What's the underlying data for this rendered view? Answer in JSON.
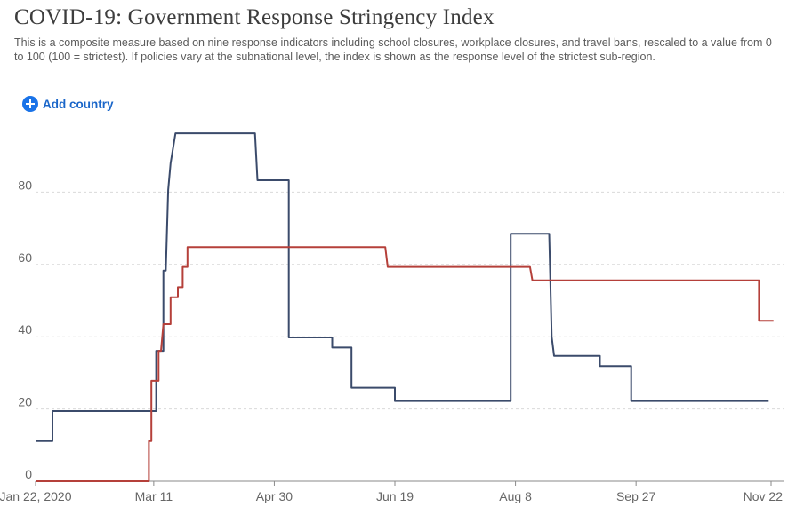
{
  "header": {
    "title": "COVID-19: Government Response Stringency Index",
    "subtitle": "This is a composite measure based on nine response indicators including school closures, workplace closures, and travel bans, rescaled to a value from 0 to 100 (100 = strictest). If policies vary at the subnational level, the index is shown as the response level of the strictest sub-region."
  },
  "controls": {
    "add_country_label": "Add country",
    "add_country_icon": "plus-circle-icon",
    "accent": "#1a73e8"
  },
  "chart_data": {
    "type": "line",
    "x_axis": {
      "type": "date",
      "range": [
        "2020-01-22",
        "2020-11-22"
      ],
      "tick_labels": [
        "Jan 22, 2020",
        "Mar 11",
        "Apr 30",
        "Jun 19",
        "Aug 8",
        "Sep 27",
        "Nov 22"
      ],
      "tick_dates": [
        "2020-01-22",
        "2020-03-11",
        "2020-04-30",
        "2020-06-19",
        "2020-08-08",
        "2020-09-27",
        "2020-11-22"
      ]
    },
    "y_axis": {
      "range": [
        0,
        100
      ],
      "ticks": [
        0,
        20,
        40,
        60,
        80
      ],
      "grid": true
    },
    "legend": "none",
    "series": [
      {
        "color": "#3b4b6b",
        "points": [
          [
            "2020-01-22",
            11.1
          ],
          [
            "2020-01-29",
            11.1
          ],
          [
            "2020-01-29",
            19.4
          ],
          [
            "2020-03-12",
            19.4
          ],
          [
            "2020-03-12",
            36.1
          ],
          [
            "2020-03-15",
            36.1
          ],
          [
            "2020-03-15",
            58.3
          ],
          [
            "2020-03-16",
            58.3
          ],
          [
            "2020-03-17",
            80.6
          ],
          [
            "2020-03-18",
            88.0
          ],
          [
            "2020-03-20",
            96.3
          ],
          [
            "2020-04-22",
            96.3
          ],
          [
            "2020-04-23",
            83.3
          ],
          [
            "2020-05-06",
            83.3
          ],
          [
            "2020-05-06",
            39.8
          ],
          [
            "2020-05-24",
            39.8
          ],
          [
            "2020-05-24",
            37.0
          ],
          [
            "2020-06-01",
            37.0
          ],
          [
            "2020-06-01",
            25.9
          ],
          [
            "2020-06-19",
            25.9
          ],
          [
            "2020-06-19",
            22.2
          ],
          [
            "2020-08-06",
            22.2
          ],
          [
            "2020-08-06",
            68.5
          ],
          [
            "2020-08-22",
            68.5
          ],
          [
            "2020-08-23",
            40.0
          ],
          [
            "2020-08-24",
            34.7
          ],
          [
            "2020-09-12",
            34.7
          ],
          [
            "2020-09-12",
            31.9
          ],
          [
            "2020-09-25",
            31.9
          ],
          [
            "2020-09-25",
            22.2
          ],
          [
            "2020-11-21",
            22.2
          ]
        ]
      },
      {
        "color": "#b5403a",
        "points": [
          [
            "2020-01-22",
            0
          ],
          [
            "2020-03-09",
            0
          ],
          [
            "2020-03-09",
            11.1
          ],
          [
            "2020-03-10",
            11.1
          ],
          [
            "2020-03-10",
            27.8
          ],
          [
            "2020-03-13",
            27.8
          ],
          [
            "2020-03-13",
            36.1
          ],
          [
            "2020-03-14",
            36.1
          ],
          [
            "2020-03-15",
            43.5
          ],
          [
            "2020-03-18",
            43.5
          ],
          [
            "2020-03-18",
            50.9
          ],
          [
            "2020-03-21",
            50.9
          ],
          [
            "2020-03-21",
            53.7
          ],
          [
            "2020-03-23",
            53.7
          ],
          [
            "2020-03-23",
            59.3
          ],
          [
            "2020-03-25",
            59.3
          ],
          [
            "2020-03-25",
            64.8
          ],
          [
            "2020-06-15",
            64.8
          ],
          [
            "2020-06-16",
            59.3
          ],
          [
            "2020-08-14",
            59.3
          ],
          [
            "2020-08-15",
            55.6
          ],
          [
            "2020-11-17",
            55.6
          ],
          [
            "2020-11-17",
            44.4
          ],
          [
            "2020-11-23",
            44.4
          ]
        ]
      }
    ]
  }
}
